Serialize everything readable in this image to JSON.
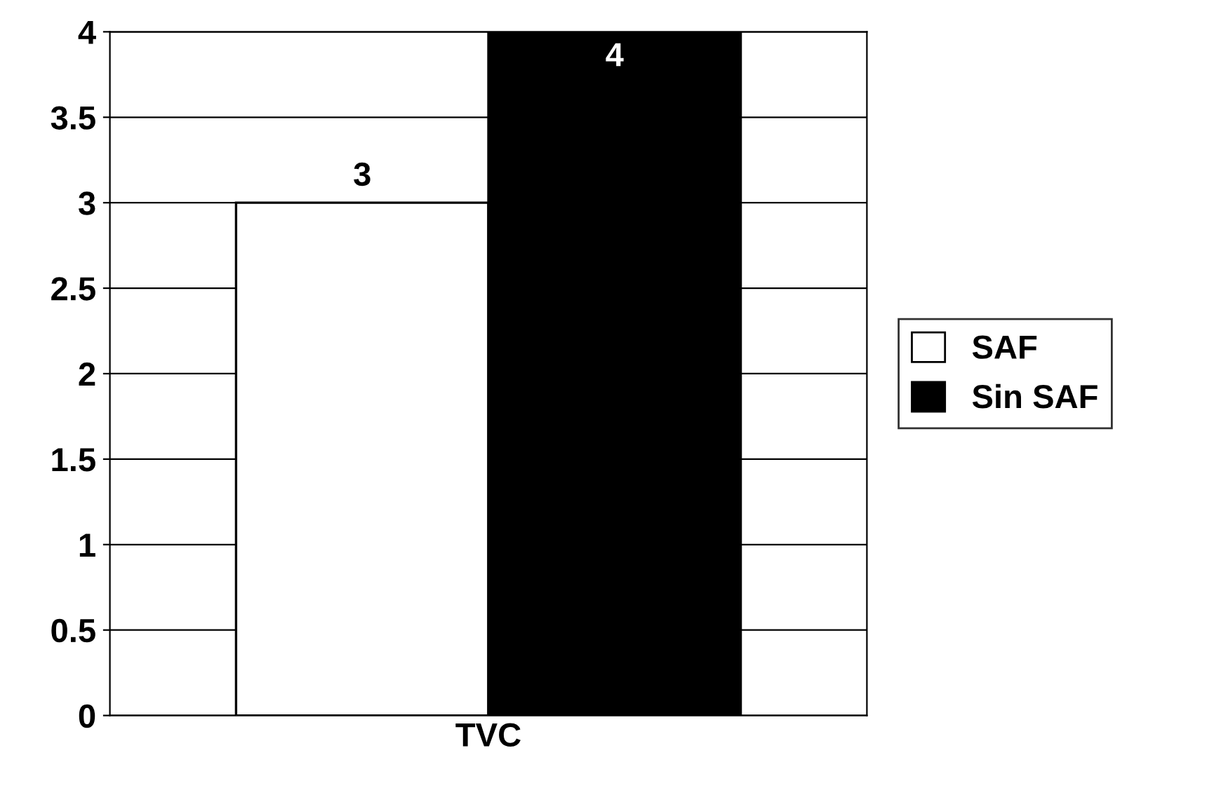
{
  "chart_data": {
    "type": "bar",
    "categories": [
      "TVC"
    ],
    "series": [
      {
        "name": "SAF",
        "color": "#ffffff",
        "values": [
          3
        ]
      },
      {
        "name": "Sin SAF",
        "color": "#000000",
        "values": [
          4
        ]
      }
    ],
    "ylim": [
      0,
      4
    ],
    "yticks": [
      0,
      0.5,
      1,
      1.5,
      2,
      2.5,
      3,
      3.5,
      4
    ],
    "grid": "y",
    "legend": "right",
    "data_labels": true
  }
}
